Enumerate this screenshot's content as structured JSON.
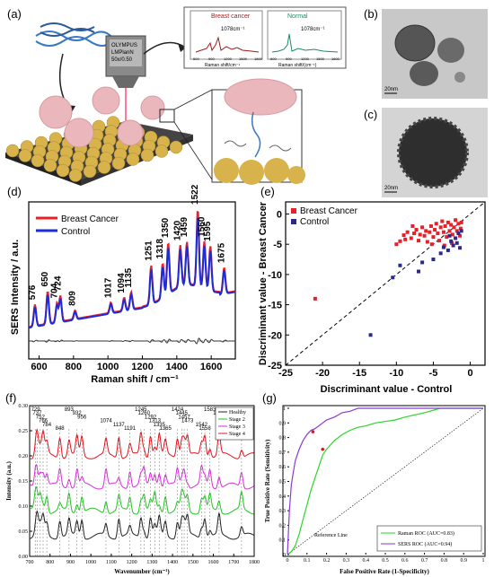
{
  "panels": {
    "a": {
      "label": "(a)",
      "spectrum_cancer": {
        "title": "Breast cancer",
        "peak": "1078cm⁻¹",
        "xlabel": "Raman shift/cm⁻¹",
        "ticks": [
          "600",
          "900",
          "1200",
          "1500",
          "1800"
        ]
      },
      "spectrum_normal": {
        "title": "Normal",
        "peak": "1078cm⁻¹",
        "xlabel": "Raman shift/(cm⁻¹)",
        "ticks": [
          "600",
          "900",
          "1200",
          "1500",
          "1800"
        ]
      },
      "colors": {
        "substrate": "#d8b24a",
        "sphere": "#e8b4b8",
        "cancer_line": "#9b1c1c",
        "normal_line": "#1a8a6a"
      }
    },
    "b": {
      "label": "(b)",
      "scale": "20nm"
    },
    "c": {
      "label": "(c)",
      "scale": "20nm"
    },
    "d": {
      "label": "(d)"
    },
    "e": {
      "label": "(e)"
    },
    "f": {
      "label": "(f)"
    },
    "g": {
      "label": "(g)"
    }
  },
  "chart_data": [
    {
      "id": "d",
      "type": "line",
      "xlabel": "Raman shift / cm⁻¹",
      "ylabel": "SERS Intensity / a.u.",
      "xlim": [
        540,
        1740
      ],
      "xticks": [
        "600",
        "800",
        "1000",
        "1200",
        "1400",
        "1600"
      ],
      "legend": {
        "placement": "top-left",
        "entries": [
          "Breast Cancer",
          "Control"
        ]
      },
      "peak_labels": [
        "576",
        "650",
        "704",
        "724",
        "809",
        "1017",
        "1094",
        "1135",
        "1251",
        "1318",
        "1350",
        "1420",
        "1459",
        "1522",
        "1560",
        "1595",
        "1675"
      ],
      "series": [
        {
          "name": "Breast Cancer",
          "color": "#e8202a"
        },
        {
          "name": "Control",
          "color": "#1f2bd6"
        }
      ]
    },
    {
      "id": "e",
      "type": "scatter",
      "xlabel": "Discriminant value - Control",
      "ylabel": "Discriminant value - Breast Cancer",
      "xlim": [
        -25,
        2
      ],
      "ylim": [
        -25,
        2
      ],
      "xticks": [
        "-25",
        "-20",
        "-15",
        "-10",
        "-5",
        "0"
      ],
      "yticks": [
        "0",
        "-5",
        "-10",
        "-15",
        "-20",
        "-25"
      ],
      "legend": {
        "placement": "top-left",
        "entries": [
          "Breast Cancer",
          "Control"
        ]
      },
      "series": [
        {
          "name": "Breast Cancer",
          "color": "#e8202a",
          "points": [
            [
              -21,
              -14
            ],
            [
              -10,
              -5
            ],
            [
              -9.5,
              -4.5
            ],
            [
              -9,
              -3.5
            ],
            [
              -8.8,
              -4.2
            ],
            [
              -8.5,
              -3
            ],
            [
              -8,
              -4
            ],
            [
              -7.6,
              -3.2
            ],
            [
              -7.3,
              -2.6
            ],
            [
              -7,
              -4.4
            ],
            [
              -6.8,
              -3.4
            ],
            [
              -6.5,
              -2.2
            ],
            [
              -6.2,
              -3.6
            ],
            [
              -6,
              -2.8
            ],
            [
              -5.8,
              -4.6
            ],
            [
              -5.5,
              -3
            ],
            [
              -5.3,
              -2
            ],
            [
              -5,
              -3.8
            ],
            [
              -4.8,
              -2.6
            ],
            [
              -4.6,
              -1.6
            ],
            [
              -4.4,
              -3.2
            ],
            [
              -4.2,
              -4.4
            ],
            [
              -4,
              -2.2
            ],
            [
              -3.8,
              -1.2
            ],
            [
              -3.6,
              -3
            ],
            [
              -3.4,
              -2
            ],
            [
              -3.2,
              -3.8
            ],
            [
              -3,
              -1.4
            ],
            [
              -2.8,
              -2.8
            ],
            [
              -2.6,
              -1.8
            ],
            [
              -2.4,
              -3.4
            ],
            [
              -2.2,
              -2.2
            ],
            [
              -2,
              -1
            ],
            [
              -1.8,
              -2.8
            ],
            [
              -1.6,
              -1.6
            ],
            [
              -1.4,
              -3.6
            ],
            [
              -1.3,
              -2.4
            ],
            [
              -1.2,
              -1.4
            ],
            [
              -5.2,
              -5
            ],
            [
              -3.5,
              -5.2
            ],
            [
              -2.5,
              -4.8
            ],
            [
              -7.8,
              -2
            ]
          ]
        },
        {
          "name": "Control",
          "color": "#2a2a8a",
          "points": [
            [
              -13.5,
              -20
            ],
            [
              -10.5,
              -10.5
            ],
            [
              -9.5,
              -8.5
            ],
            [
              -7,
              -9.5
            ],
            [
              -6.5,
              -8
            ],
            [
              -5,
              -7.5
            ],
            [
              -4,
              -6.5
            ],
            [
              -3.6,
              -5.5
            ],
            [
              -3,
              -6
            ],
            [
              -2.6,
              -4.5
            ],
            [
              -2.3,
              -5.2
            ],
            [
              -2,
              -4
            ],
            [
              -1.8,
              -4.8
            ],
            [
              -1.6,
              -3.2
            ],
            [
              -1.4,
              -5.6
            ],
            [
              -1.2,
              -2.8
            ],
            [
              -2.8,
              -3.6
            ]
          ]
        }
      ]
    },
    {
      "id": "f",
      "type": "line",
      "xlabel": "Wavenumber (cm⁻¹)",
      "ylabel": "Intensity (a.u.)",
      "xlim": [
        700,
        1800
      ],
      "ylim": [
        0,
        0.3
      ],
      "xticks": [
        "700",
        "800",
        "900",
        "1000",
        "1100",
        "1200",
        "1300",
        "1400",
        "1500",
        "1600",
        "1700",
        "1800"
      ],
      "yticks": [
        "0.00",
        "0.05",
        "0.10",
        "0.15",
        "0.20",
        "0.25",
        "0.30"
      ],
      "legend": {
        "placement": "top-right",
        "entries": [
          "Healthy",
          "Stage 2",
          "Stage 3",
          "Stage 4"
        ]
      },
      "peak_labels": [
        "729",
        "737",
        "752",
        "766",
        "784",
        "848",
        "893",
        "932",
        "956",
        "1074",
        "1137",
        "1191",
        "1245",
        "1260",
        "1292",
        "1313",
        "1335",
        "1365",
        "1424",
        "1445",
        "1457",
        "1473",
        "1542",
        "1558",
        "1583",
        "1628",
        "1738"
      ],
      "series": [
        {
          "name": "Healthy",
          "color": "#222222",
          "offset": 0.04
        },
        {
          "name": "Stage 2",
          "color": "#21c421",
          "offset": 0.09
        },
        {
          "name": "Stage 3",
          "color": "#d62fd6",
          "offset": 0.14
        },
        {
          "name": "Stage 4",
          "color": "#e0141e",
          "offset": 0.2
        }
      ]
    },
    {
      "id": "g",
      "type": "line",
      "xlabel": "False Positive Rate (1-Specificity)",
      "ylabel": "True Positive Rate (Sensitivity)",
      "xlim": [
        0,
        1
      ],
      "ylim": [
        0,
        1
      ],
      "xticks": [
        "0",
        "0.1",
        "0.2",
        "0.3",
        "0.4",
        "0.5",
        "0.6",
        "0.7",
        "0.8",
        "0.9",
        "1"
      ],
      "yticks": [
        "0",
        "0.1",
        "0.2",
        "0.3",
        "0.4",
        "0.5",
        "0.6",
        "0.7",
        "0.8",
        "0.9",
        "1"
      ],
      "annotation": "Reference Line",
      "legend": {
        "placement": "bottom-right",
        "entries": [
          "Raman ROC (AUC=0.83)",
          "SERS ROC (AUC=0.94)"
        ]
      },
      "series": [
        {
          "name": "Raman ROC (AUC=0.83)",
          "color": "#2ad62a",
          "points": [
            [
              0,
              0
            ],
            [
              0.02,
              0.02
            ],
            [
              0.04,
              0.06
            ],
            [
              0.06,
              0.14
            ],
            [
              0.08,
              0.24
            ],
            [
              0.1,
              0.34
            ],
            [
              0.12,
              0.44
            ],
            [
              0.14,
              0.52
            ],
            [
              0.16,
              0.6
            ],
            [
              0.18,
              0.68
            ],
            [
              0.2,
              0.72
            ],
            [
              0.22,
              0.75
            ],
            [
              0.24,
              0.78
            ],
            [
              0.26,
              0.8
            ],
            [
              0.28,
              0.82
            ],
            [
              0.32,
              0.85
            ],
            [
              0.36,
              0.87
            ],
            [
              0.4,
              0.88
            ],
            [
              0.45,
              0.9
            ],
            [
              0.5,
              0.91
            ],
            [
              0.55,
              0.92
            ],
            [
              0.6,
              0.94
            ],
            [
              0.7,
              0.97
            ],
            [
              0.78,
              1
            ],
            [
              1,
              1
            ]
          ]
        },
        {
          "name": "SERS ROC (AUC=0.94)",
          "color": "#8a3ad6",
          "points": [
            [
              0,
              0
            ],
            [
              0.01,
              0.3
            ],
            [
              0.02,
              0.48
            ],
            [
              0.03,
              0.56
            ],
            [
              0.04,
              0.64
            ],
            [
              0.06,
              0.72
            ],
            [
              0.08,
              0.78
            ],
            [
              0.1,
              0.82
            ],
            [
              0.12,
              0.85
            ],
            [
              0.14,
              0.86
            ],
            [
              0.16,
              0.88
            ],
            [
              0.18,
              0.9
            ],
            [
              0.2,
              0.92
            ],
            [
              0.24,
              0.94
            ],
            [
              0.28,
              0.97
            ],
            [
              0.32,
              0.98
            ],
            [
              0.36,
              1
            ],
            [
              1,
              1
            ]
          ]
        }
      ],
      "markers": [
        [
          0.13,
          0.84
        ],
        [
          0.18,
          0.72
        ]
      ]
    }
  ]
}
